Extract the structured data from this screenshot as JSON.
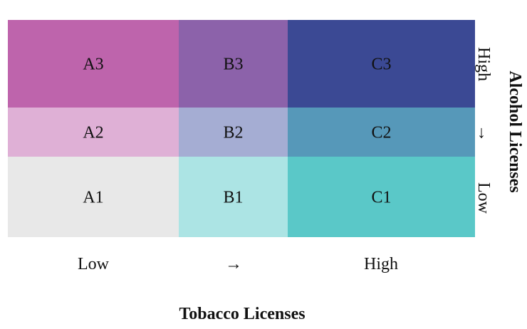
{
  "chart_data": {
    "type": "heatmap",
    "title": "",
    "xlabel": "Tobacco Licenses",
    "ylabel": "Alcohol Licenses",
    "x_ticks": [
      "Low",
      "→",
      "High"
    ],
    "y_ticks": [
      "Low",
      "→",
      "High"
    ],
    "columns": [
      "A",
      "B",
      "C"
    ],
    "rows": [
      "1",
      "2",
      "3"
    ],
    "cells": [
      {
        "label": "A1",
        "column": "A",
        "row": "1",
        "color": "#e8e8e8"
      },
      {
        "label": "B1",
        "column": "B",
        "row": "1",
        "color": "#ace4e4"
      },
      {
        "label": "C1",
        "column": "C",
        "row": "1",
        "color": "#5ac8c8"
      },
      {
        "label": "A2",
        "column": "A",
        "row": "2",
        "color": "#dfb0d6"
      },
      {
        "label": "B2",
        "column": "B",
        "row": "2",
        "color": "#a5add3"
      },
      {
        "label": "C2",
        "column": "C",
        "row": "2",
        "color": "#5698b9"
      },
      {
        "label": "A3",
        "column": "A",
        "row": "3",
        "color": "#be64ac"
      },
      {
        "label": "B3",
        "column": "B",
        "row": "3",
        "color": "#8c62aa"
      },
      {
        "label": "C3",
        "column": "C",
        "row": "3",
        "color": "#3b4994"
      }
    ]
  }
}
